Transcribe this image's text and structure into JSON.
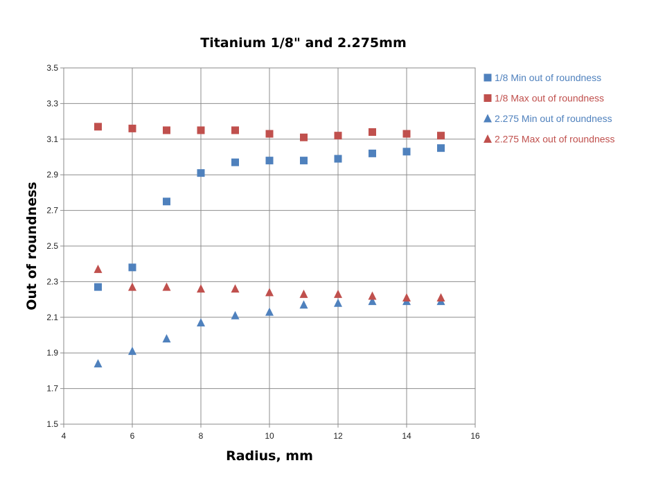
{
  "chart_data": {
    "type": "scatter",
    "title": "Titanium 1/8\" and 2.275mm",
    "xlabel": "Radius, mm",
    "ylabel": "Out of roundness",
    "xlim": [
      4,
      16
    ],
    "ylim": [
      1.5,
      3.5
    ],
    "xticks": [
      "4",
      "6",
      "8",
      "10",
      "12",
      "14",
      "16"
    ],
    "yticks": [
      "1.5",
      "1.7",
      "1.9",
      "2.1",
      "2.3",
      "2.5",
      "2.7",
      "2.9",
      "3.1",
      "3.3",
      "3.5"
    ],
    "grid": true,
    "legend_position": "right",
    "series": [
      {
        "name": "1/8 Min out of roundness",
        "marker": "square",
        "color": "#4F81BD",
        "x": [
          5,
          6,
          7,
          8,
          9,
          10,
          11,
          12,
          13,
          14,
          15
        ],
        "y": [
          2.27,
          2.38,
          2.75,
          2.91,
          2.97,
          2.98,
          2.98,
          2.99,
          3.02,
          3.03,
          3.05
        ]
      },
      {
        "name": "1/8 Max out of roundness",
        "marker": "square",
        "color": "#C0504D",
        "x": [
          5,
          6,
          7,
          8,
          9,
          10,
          11,
          12,
          13,
          14,
          15
        ],
        "y": [
          3.17,
          3.16,
          3.15,
          3.15,
          3.15,
          3.13,
          3.11,
          3.12,
          3.14,
          3.13,
          3.12
        ]
      },
      {
        "name": "2.275 Min out of roundness",
        "marker": "triangle",
        "color": "#4F81BD",
        "x": [
          5,
          6,
          7,
          8,
          9,
          10,
          11,
          12,
          13,
          14,
          15
        ],
        "y": [
          1.84,
          1.91,
          1.98,
          2.07,
          2.11,
          2.13,
          2.17,
          2.18,
          2.19,
          2.19,
          2.19
        ]
      },
      {
        "name": "2.275 Max out of roundness",
        "marker": "triangle",
        "color": "#C0504D",
        "x": [
          5,
          6,
          7,
          8,
          9,
          10,
          11,
          12,
          13,
          14,
          15
        ],
        "y": [
          2.37,
          2.27,
          2.27,
          2.26,
          2.26,
          2.24,
          2.23,
          2.23,
          2.22,
          2.21,
          2.21
        ]
      }
    ]
  }
}
